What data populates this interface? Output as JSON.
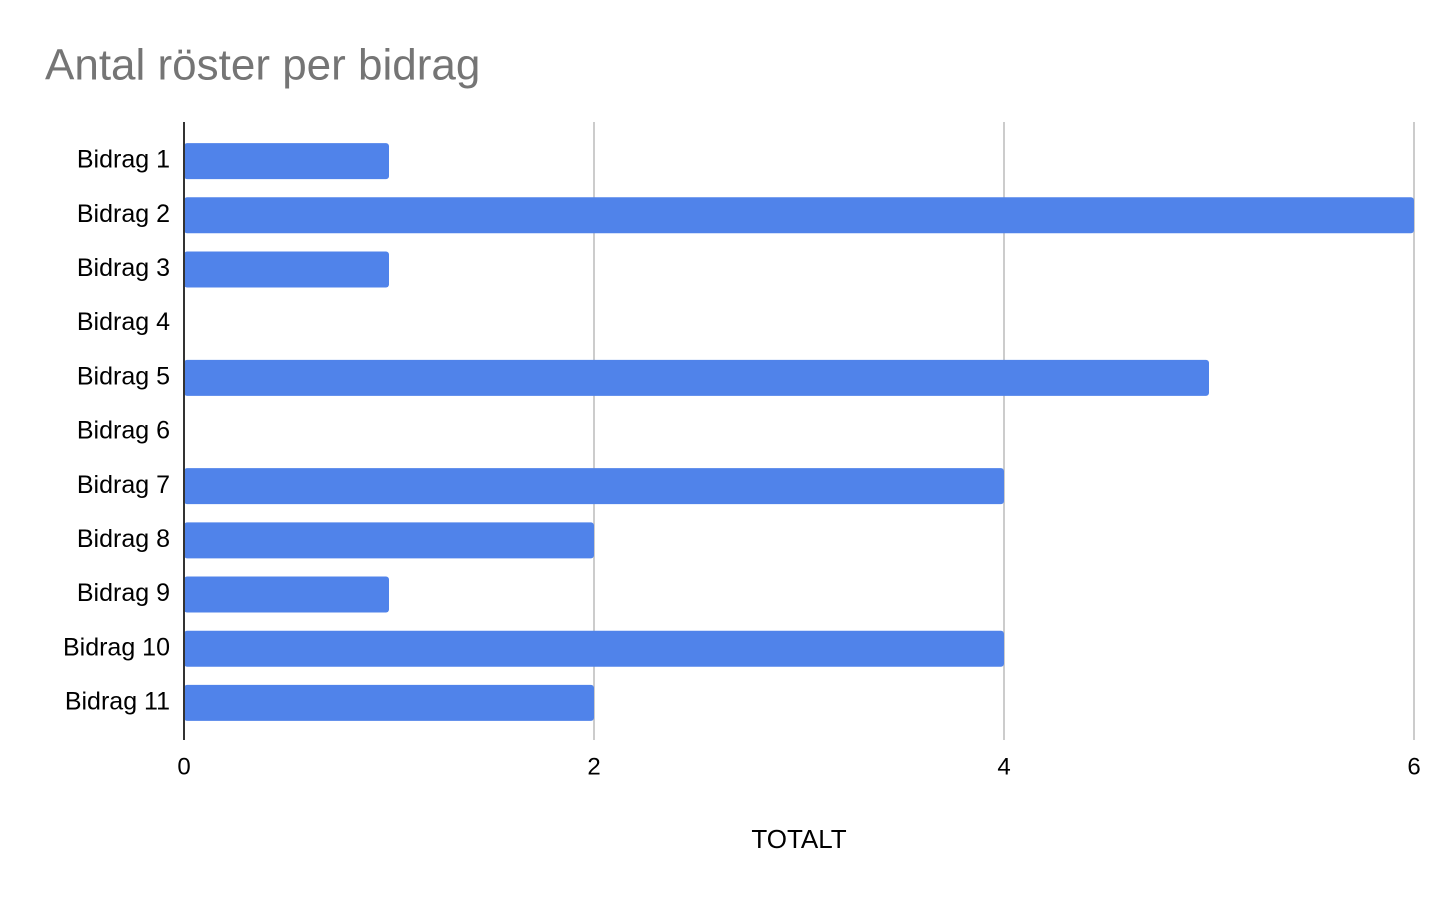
{
  "chart_data": {
    "type": "hbar",
    "title": "Antal röster per bidrag",
    "categories": [
      "Bidrag 1",
      "Bidrag 2",
      "Bidrag 3",
      "Bidrag 4",
      "Bidrag 5",
      "Bidrag 6",
      "Bidrag 7",
      "Bidrag 8",
      "Bidrag 9",
      "Bidrag 10",
      "Bidrag 11"
    ],
    "values": [
      1,
      6,
      1,
      0,
      5,
      0,
      4,
      2,
      1,
      4,
      2
    ],
    "color": "#5083ea",
    "x_label": "TOTALT",
    "xlim": [
      0,
      6
    ],
    "xticks": [
      0,
      2,
      4,
      6
    ],
    "grid": true
  }
}
